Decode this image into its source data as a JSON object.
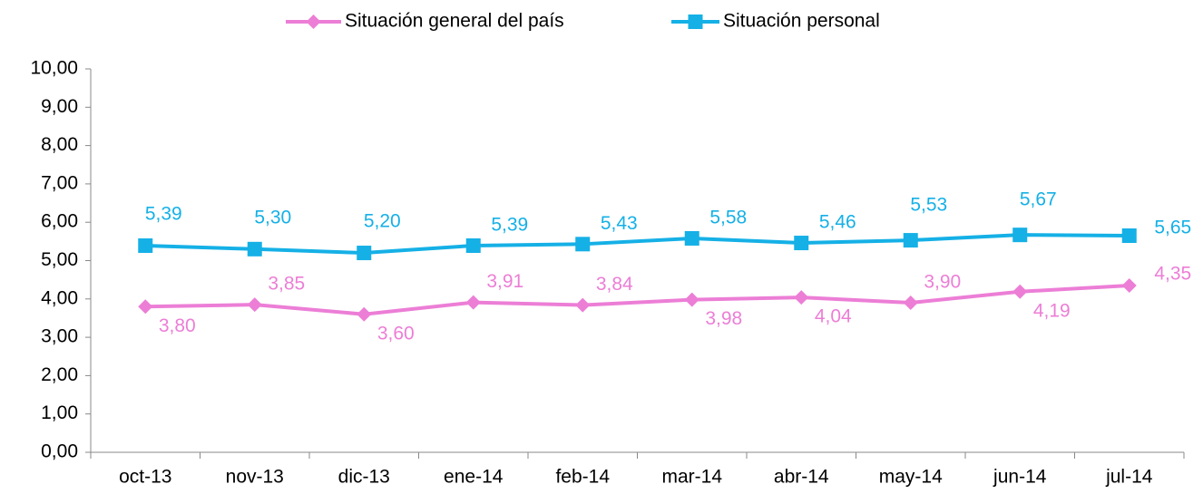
{
  "chart_data": {
    "type": "line",
    "categories": [
      "oct-13",
      "nov-13",
      "dic-13",
      "ene-14",
      "feb-14",
      "mar-14",
      "abr-14",
      "may-14",
      "jun-14",
      "jul-14"
    ],
    "series": [
      {
        "name": "Situación general del país",
        "color": "#ec7ed6",
        "marker": "diamond",
        "values": [
          3.8,
          3.85,
          3.6,
          3.91,
          3.84,
          3.98,
          4.04,
          3.9,
          4.19,
          4.35
        ],
        "value_labels": [
          "3,80",
          "3,85",
          "3,60",
          "3,91",
          "3,84",
          "3,98",
          "4,04",
          "3,90",
          "4,19",
          "4,35"
        ]
      },
      {
        "name": "Situación personal",
        "color": "#15b0e6",
        "marker": "square",
        "values": [
          5.39,
          5.3,
          5.2,
          5.39,
          5.43,
          5.58,
          5.46,
          5.53,
          5.67,
          5.65
        ],
        "value_labels": [
          "5,39",
          "5,30",
          "5,20",
          "5,39",
          "5,43",
          "5,58",
          "5,46",
          "5,53",
          "5,67",
          "5,65"
        ]
      }
    ],
    "ylim": [
      0,
      10
    ],
    "yticks": [
      {
        "value": 0,
        "label": "0,00"
      },
      {
        "value": 1,
        "label": "1,00"
      },
      {
        "value": 2,
        "label": "2,00"
      },
      {
        "value": 3,
        "label": "3,00"
      },
      {
        "value": 4,
        "label": "4,00"
      },
      {
        "value": 5,
        "label": "5,00"
      },
      {
        "value": 6,
        "label": "6,00"
      },
      {
        "value": 7,
        "label": "7,00"
      },
      {
        "value": 8,
        "label": "8,00"
      },
      {
        "value": 9,
        "label": "9,00"
      },
      {
        "value": 10,
        "label": "10,00"
      }
    ],
    "legend": "top"
  }
}
